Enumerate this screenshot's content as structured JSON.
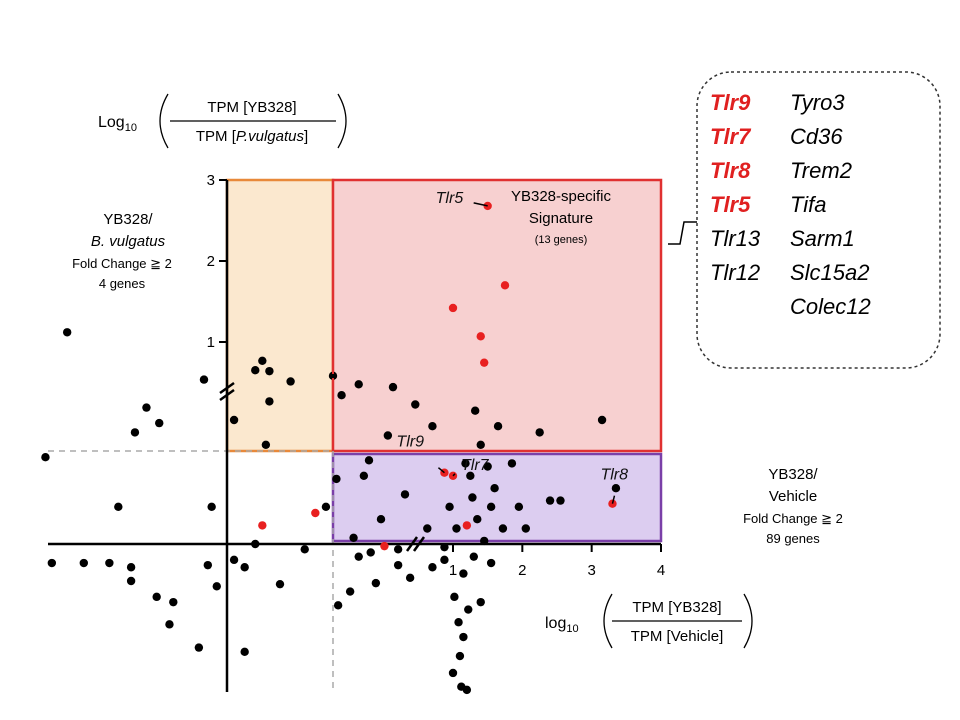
{
  "chart_data": {
    "type": "scatter",
    "xlabel": {
      "prefix": "log",
      "sub": "10",
      "numerator": "TPM [YB328]",
      "denominator": "TPM [Vehicle]"
    },
    "ylabel": {
      "prefix": "Log",
      "sub": "10",
      "numerator": "TPM [YB328]",
      "denominator_pre": "TPM [",
      "denominator_italic": "P.vulgatus",
      "denominator_post": "]"
    },
    "x_ticks": [
      "1",
      "2",
      "3",
      "4"
    ],
    "y_ticks": [
      "1",
      "2",
      "3"
    ],
    "xlim": [
      -1.0,
      4.0
    ],
    "x_break": 1.0,
    "ylim": [
      -1.2,
      3.0
    ],
    "y_break": 0.5,
    "threshold": 0.3,
    "regions": {
      "red": {
        "title": "YB328-specific",
        "title2": "Signature",
        "count": "(13 genes)",
        "color": "#e03030",
        "fill": "#f7d0d0"
      },
      "orange": {
        "title": "YB328/",
        "title2": "B. vulgatus",
        "fold": "Fold Change ≧ 2",
        "count": "4 genes",
        "color": "#e8893a",
        "fill": "#fbe8cf"
      },
      "purple": {
        "title": "YB328/",
        "title2": "Vehicle",
        "fold": "Fold Change ≧ 2",
        "count": "89 genes",
        "color": "#7a3fa8",
        "fill": "#dccdf0"
      }
    },
    "annotations": [
      {
        "label": "Tlr5",
        "x": 1.5,
        "y": 2.68
      },
      {
        "label": "Tlr9",
        "x": 0.95,
        "y": 0.23
      },
      {
        "label": "Tlr7",
        "x": 1.0,
        "y": 0.22
      },
      {
        "label": "Tlr8",
        "x": 3.3,
        "y": 0.13
      }
    ],
    "red_points": [
      [
        1.5,
        2.68
      ],
      [
        1.75,
        1.7
      ],
      [
        1.0,
        1.42
      ],
      [
        1.4,
        1.07
      ],
      [
        1.45,
        0.78
      ],
      [
        0.95,
        0.23
      ],
      [
        1.0,
        0.22
      ],
      [
        3.3,
        0.13
      ],
      [
        0.1,
        0.06
      ],
      [
        0.25,
        0.1
      ],
      [
        0.6,
        -0.02
      ],
      [
        1.2,
        0.06
      ]
    ],
    "orange_points": [
      [
        0.1,
        0.8
      ],
      [
        0.12,
        0.69
      ]
    ],
    "black_points": [
      [
        -1.25,
        1.12
      ],
      [
        -1.42,
        0.28
      ],
      [
        -0.85,
        0.12
      ],
      [
        -0.75,
        -0.35
      ],
      [
        -0.72,
        0.36
      ],
      [
        -0.63,
        0.44
      ],
      [
        -0.53,
        0.39
      ],
      [
        -0.18,
        0.6
      ],
      [
        -0.12,
        0.12
      ],
      [
        -0.92,
        -0.18
      ],
      [
        -1.37,
        -0.18
      ],
      [
        -1.12,
        -0.18
      ],
      [
        -0.75,
        -0.22
      ],
      [
        -0.55,
        -0.5
      ],
      [
        -0.42,
        -0.55
      ],
      [
        -0.08,
        -0.4
      ],
      [
        0.05,
        -0.22
      ],
      [
        0.08,
        0.7
      ],
      [
        0.18,
        0.58
      ],
      [
        0.3,
        0.64
      ],
      [
        0.45,
        0.55
      ],
      [
        0.65,
        0.52
      ],
      [
        0.02,
        0.4
      ],
      [
        0.11,
        0.32
      ],
      [
        0.32,
        0.21
      ],
      [
        0.51,
        0.27
      ],
      [
        0.08,
        0.0
      ],
      [
        0.12,
        0.46
      ],
      [
        -0.45,
        -0.76
      ],
      [
        -0.22,
        -0.98
      ],
      [
        0.05,
        -1.02
      ],
      [
        0.33,
        -0.58
      ],
      [
        0.15,
        -0.38
      ],
      [
        0.4,
        -0.45
      ],
      [
        0.55,
        -0.37
      ],
      [
        0.68,
        -0.2
      ],
      [
        0.75,
        -0.32
      ],
      [
        0.88,
        -0.22
      ],
      [
        0.95,
        -0.03
      ],
      [
        1.05,
        0.05
      ],
      [
        1.02,
        -0.5
      ],
      [
        1.08,
        -0.74
      ],
      [
        1.15,
        -0.88
      ],
      [
        1.22,
        -0.62
      ],
      [
        1.1,
        -1.06
      ],
      [
        1.0,
        -1.22
      ],
      [
        1.12,
        -1.35
      ],
      [
        1.2,
        -1.38
      ],
      [
        1.3,
        -0.12
      ],
      [
        1.45,
        0.01
      ],
      [
        1.4,
        0.32
      ],
      [
        1.5,
        0.25
      ],
      [
        1.55,
        0.12
      ],
      [
        1.65,
        0.38
      ],
      [
        1.72,
        0.05
      ],
      [
        1.85,
        0.26
      ],
      [
        1.95,
        0.12
      ],
      [
        2.05,
        0.05
      ],
      [
        2.25,
        0.36
      ],
      [
        2.4,
        0.14
      ],
      [
        2.55,
        0.14
      ],
      [
        3.15,
        0.4
      ],
      [
        3.35,
        0.18
      ],
      [
        1.55,
        -0.18
      ],
      [
        1.4,
        -0.55
      ],
      [
        0.28,
        0.12
      ],
      [
        0.42,
        0.02
      ],
      [
        0.58,
        0.08
      ],
      [
        0.72,
        0.16
      ],
      [
        0.85,
        0.05
      ],
      [
        1.28,
        0.15
      ],
      [
        1.32,
        0.43
      ],
      [
        0.35,
        0.48
      ],
      [
        0.48,
        0.22
      ],
      [
        0.62,
        0.35
      ],
      [
        0.78,
        0.45
      ],
      [
        1.18,
        0.26
      ],
      [
        1.35,
        0.08
      ],
      [
        0.22,
        -0.05
      ],
      [
        0.52,
        -0.08
      ],
      [
        0.98,
        0.12
      ],
      [
        1.25,
        0.22
      ],
      [
        0.95,
        -0.15
      ],
      [
        1.15,
        -0.28
      ],
      [
        0.45,
        -0.12
      ],
      [
        0.68,
        -0.05
      ],
      [
        0.88,
        0.38
      ],
      [
        1.6,
        0.18
      ],
      [
        0.02,
        -0.15
      ],
      [
        -0.15,
        -0.2
      ]
    ],
    "gene_box": {
      "col1": [
        {
          "name": "Tlr9",
          "color": "#e02020",
          "bold": true
        },
        {
          "name": "Tlr7",
          "color": "#e02020",
          "bold": true
        },
        {
          "name": "Tlr8",
          "color": "#e02020",
          "bold": true
        },
        {
          "name": "Tlr5",
          "color": "#e02020",
          "bold": true
        },
        {
          "name": "Tlr13",
          "color": "#000000",
          "bold": false
        },
        {
          "name": "Tlr12",
          "color": "#000000",
          "bold": false
        }
      ],
      "col2": [
        "Tyro3",
        "Cd36",
        "Trem2",
        "Tifa",
        "Sarm1",
        "Slc15a2",
        "Colec12"
      ]
    }
  }
}
